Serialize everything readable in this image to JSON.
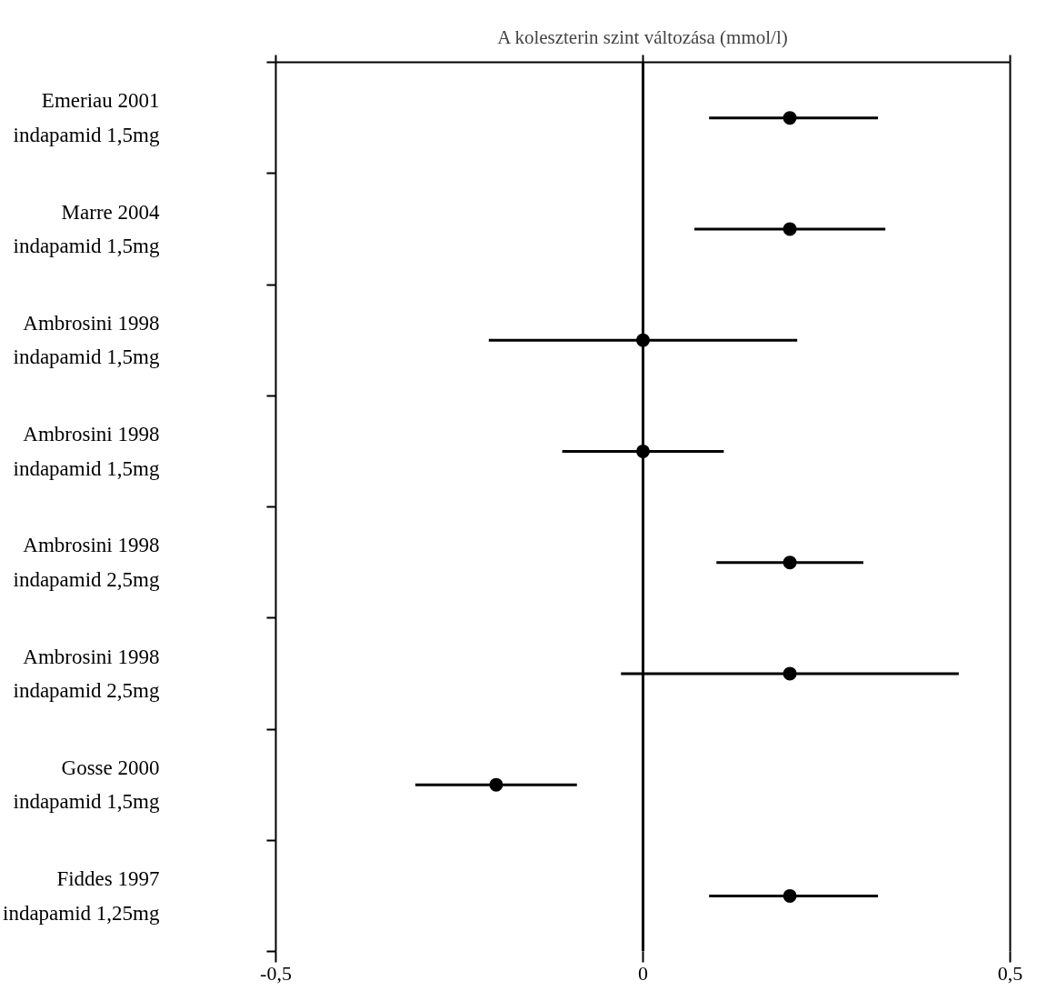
{
  "chart_data": {
    "type": "scatter",
    "orientation": "horizontal",
    "xlabel": "A koleszterin szint változása (mmol/l)",
    "categories": [
      "Emeriau 2001\nindapamid 1,5mg",
      "Marre 2004\nindapamid 1,5mg",
      "Ambrosini 1998\nindapamid 1,5mg",
      "Ambrosini 1998\nindapamid 1,5mg",
      "Ambrosini 1998\nindapamid 2,5mg",
      "Ambrosini 1998\nindapamid 2,5mg",
      "Gosse 2000\nindapamid 1,5mg",
      "Fiddes 1997\nindapamid 1,25mg"
    ],
    "values": [
      0.2,
      0.2,
      0,
      0,
      0.2,
      0.2,
      -0.2,
      0.2
    ],
    "errors": [
      [
        0.09,
        0.32
      ],
      [
        0.07,
        0.33
      ],
      [
        -0.21,
        0.21
      ],
      [
        -0.11,
        0.11
      ],
      [
        0.1,
        0.3
      ],
      [
        -0.03,
        0.43
      ],
      [
        -0.31,
        -0.09
      ],
      [
        0.09,
        0.32
      ]
    ],
    "color": "#000000",
    "marker": "circle",
    "xlim": [
      -0.5,
      0.5
    ],
    "xticks": [
      {
        "value": -0.5,
        "label": "-0,5"
      },
      0,
      {
        "value": 0.5,
        "label": "0,5"
      }
    ],
    "ref_lines": [
      {
        "axis": "x",
        "value": 0,
        "label": null
      }
    ],
    "grid": false
  }
}
